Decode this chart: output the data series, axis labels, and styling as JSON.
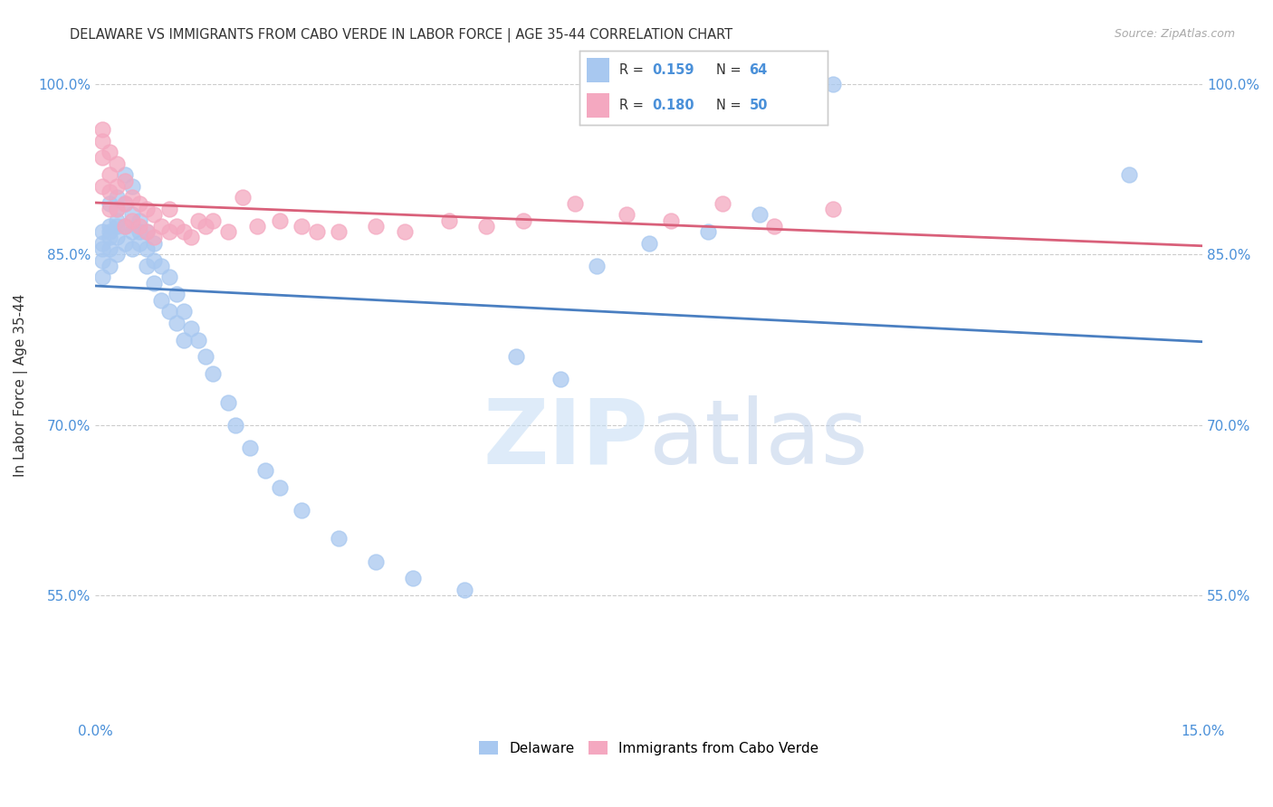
{
  "title": "DELAWARE VS IMMIGRANTS FROM CABO VERDE IN LABOR FORCE | AGE 35-44 CORRELATION CHART",
  "source": "Source: ZipAtlas.com",
  "ylabel": "In Labor Force | Age 35-44",
  "xmin": 0.0,
  "xmax": 0.15,
  "ymin": 0.44,
  "ymax": 1.03,
  "yticks": [
    0.55,
    0.7,
    0.85,
    1.0
  ],
  "ytick_labels": [
    "55.0%",
    "70.0%",
    "85.0%",
    "100.0%"
  ],
  "xticks": [
    0.0,
    0.03,
    0.06,
    0.09,
    0.12,
    0.15
  ],
  "xtick_labels": [
    "0.0%",
    "",
    "",
    "",
    "",
    "15.0%"
  ],
  "blue_color": "#a8c8f0",
  "pink_color": "#f4a8c0",
  "trend_blue": "#4a7fc1",
  "trend_pink": "#d9607a",
  "legend_val_color": "#4a90d9",
  "delaware_x": [
    0.001,
    0.001,
    0.001,
    0.001,
    0.001,
    0.002,
    0.002,
    0.002,
    0.002,
    0.002,
    0.002,
    0.003,
    0.003,
    0.003,
    0.003,
    0.003,
    0.003,
    0.004,
    0.004,
    0.004,
    0.004,
    0.005,
    0.005,
    0.005,
    0.005,
    0.006,
    0.006,
    0.006,
    0.007,
    0.007,
    0.007,
    0.008,
    0.008,
    0.008,
    0.009,
    0.009,
    0.01,
    0.01,
    0.011,
    0.011,
    0.012,
    0.012,
    0.013,
    0.014,
    0.015,
    0.016,
    0.018,
    0.019,
    0.021,
    0.023,
    0.025,
    0.028,
    0.033,
    0.038,
    0.043,
    0.05,
    0.057,
    0.063,
    0.068,
    0.075,
    0.083,
    0.09,
    0.1,
    0.14
  ],
  "delaware_y": [
    0.87,
    0.86,
    0.855,
    0.845,
    0.83,
    0.895,
    0.875,
    0.87,
    0.865,
    0.855,
    0.84,
    0.9,
    0.89,
    0.88,
    0.875,
    0.865,
    0.85,
    0.92,
    0.895,
    0.875,
    0.86,
    0.91,
    0.885,
    0.87,
    0.855,
    0.88,
    0.87,
    0.86,
    0.87,
    0.855,
    0.84,
    0.86,
    0.845,
    0.825,
    0.84,
    0.81,
    0.83,
    0.8,
    0.815,
    0.79,
    0.8,
    0.775,
    0.785,
    0.775,
    0.76,
    0.745,
    0.72,
    0.7,
    0.68,
    0.66,
    0.645,
    0.625,
    0.6,
    0.58,
    0.565,
    0.555,
    0.76,
    0.74,
    0.84,
    0.86,
    0.87,
    0.885,
    1.0,
    0.92
  ],
  "cabo_x": [
    0.001,
    0.001,
    0.001,
    0.001,
    0.002,
    0.002,
    0.002,
    0.002,
    0.003,
    0.003,
    0.003,
    0.004,
    0.004,
    0.004,
    0.005,
    0.005,
    0.006,
    0.006,
    0.007,
    0.007,
    0.008,
    0.008,
    0.009,
    0.01,
    0.01,
    0.011,
    0.012,
    0.013,
    0.014,
    0.015,
    0.016,
    0.018,
    0.02,
    0.022,
    0.025,
    0.028,
    0.03,
    0.033,
    0.038,
    0.042,
    0.048,
    0.053,
    0.058,
    0.065,
    0.072,
    0.078,
    0.085,
    0.092,
    0.1
  ],
  "cabo_y": [
    0.96,
    0.95,
    0.935,
    0.91,
    0.94,
    0.92,
    0.905,
    0.89,
    0.93,
    0.91,
    0.89,
    0.915,
    0.895,
    0.875,
    0.9,
    0.88,
    0.895,
    0.875,
    0.89,
    0.87,
    0.885,
    0.865,
    0.875,
    0.89,
    0.87,
    0.875,
    0.87,
    0.865,
    0.88,
    0.875,
    0.88,
    0.87,
    0.9,
    0.875,
    0.88,
    0.875,
    0.87,
    0.87,
    0.875,
    0.87,
    0.88,
    0.875,
    0.88,
    0.895,
    0.885,
    0.88,
    0.895,
    0.875,
    0.89
  ]
}
